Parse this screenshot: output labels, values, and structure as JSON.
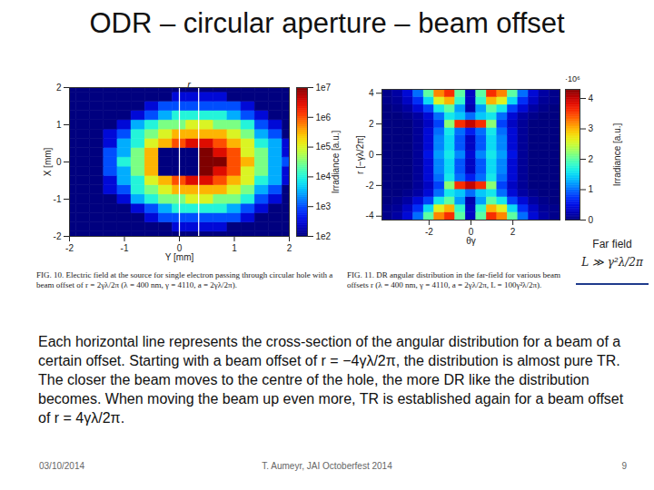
{
  "slide": {
    "title": "ODR – circular aperture – beam offset",
    "text": "Each horizontal line represents the cross-section of the angular distribution for a beam of a certain offset. Starting with a beam offset of r = −4γλ/2π, the distribution is almost pure TR. The closer the beam moves to the centre of the hole, the more DR like the distribution becomes. When moving the beam up even more, TR is established again for a beam offset of r = 4γλ/2π.",
    "footer": {
      "date": "03/10/2014",
      "author": "T. Aumeyr, JAI Octoberfest 2014",
      "page": 9
    }
  },
  "far_field": {
    "label": "Far field",
    "condition": "L ≫ γ²λ/2π"
  },
  "chart_data": [
    {
      "type": "heatmap",
      "caption": "FIG. 10. Electric field at the source for single electron passing through circular hole with a beam offset of r = 2γλ/2π (λ = 400 nm, γ = 4110, a = 2γλ/2π).",
      "xlabel": "Y [mm]",
      "ylabel": "X [mm]",
      "xlim": [
        -2,
        2
      ],
      "ylim": [
        -2,
        2
      ],
      "xticks": [
        -2,
        -1,
        0,
        1,
        2
      ],
      "yticks": [
        -2,
        -1,
        0,
        1,
        2
      ],
      "annotation": {
        "label": "r",
        "lines": [
          0,
          0.35
        ]
      },
      "x": [
        -2,
        -1.75,
        -1.5,
        -1.25,
        -1,
        -0.75,
        -0.5,
        -0.25,
        0,
        0.25,
        0.5,
        0.75,
        1,
        1.25,
        1.5,
        1.75,
        2
      ],
      "y": [
        -2,
        -1.75,
        -1.5,
        -1.25,
        -1,
        -0.75,
        -0.5,
        -0.25,
        0,
        0.25,
        0.5,
        0.75,
        1,
        1.25,
        1.5,
        1.75,
        2
      ],
      "z": [
        [
          100.0,
          100.0,
          100.0,
          100.0,
          100.0,
          100.0,
          100.0,
          100.0,
          100.0,
          100.0,
          100.0,
          100.0,
          100.0,
          100.0,
          100.0,
          100.0,
          100.0
        ],
        [
          100.0,
          100.0,
          100.0,
          100.0,
          100.0,
          100.0,
          100.0,
          100.0,
          300.0,
          300.0,
          300.0,
          300.0,
          100.0,
          100.0,
          100.0,
          100.0,
          100.0
        ],
        [
          100.0,
          100.0,
          100.0,
          100.0,
          100.0,
          100.0,
          300.0,
          1000.0,
          1000.0,
          1000.0,
          1000.0,
          1000.0,
          1000.0,
          300.0,
          100.0,
          100.0,
          100.0
        ],
        [
          100.0,
          100.0,
          100.0,
          100.0,
          100.0,
          300.0,
          1000.0,
          3000.0,
          10000.0,
          10000.0,
          10000.0,
          10000.0,
          3000.0,
          1000.0,
          300.0,
          100.0,
          100.0
        ],
        [
          100.0,
          100.0,
          100.0,
          100.0,
          300.0,
          3000.0,
          10000.0,
          30000.0,
          30000.0,
          100000.0,
          100000.0,
          30000.0,
          30000.0,
          10000.0,
          1000.0,
          300.0,
          100.0
        ],
        [
          100.0,
          100.0,
          100.0,
          300.0,
          1000.0,
          10000.0,
          30000.0,
          100000.0,
          300000.0,
          300000.0,
          300000.0,
          300000.0,
          100000.0,
          30000.0,
          3000.0,
          1000.0,
          100.0
        ],
        [
          100.0,
          100.0,
          100.0,
          300.0,
          3000.0,
          10000.0,
          100000.0,
          300000.0,
          1000000.0,
          3000000.0,
          3000000.0,
          1000000.0,
          300000.0,
          100000.0,
          10000.0,
          3000.0,
          300.0
        ],
        [
          100.0,
          100.0,
          100.0,
          1000.0,
          3000.0,
          30000.0,
          300000.0,
          100.0,
          100.0,
          100.0,
          10000000.0,
          3000000.0,
          1000000.0,
          100000.0,
          30000.0,
          3000.0,
          300.0
        ],
        [
          100.0,
          100.0,
          100.0,
          1000.0,
          10000.0,
          30000.0,
          300000.0,
          100.0,
          100.0,
          100.0,
          10000000.0,
          10000000.0,
          1000000.0,
          300000.0,
          30000.0,
          3000.0,
          1000.0
        ],
        [
          100.0,
          100.0,
          100.0,
          1000.0,
          3000.0,
          30000.0,
          300000.0,
          100.0,
          100.0,
          100.0,
          10000000.0,
          3000000.0,
          1000000.0,
          100000.0,
          30000.0,
          3000.0,
          300.0
        ],
        [
          100.0,
          100.0,
          100.0,
          300.0,
          3000.0,
          10000.0,
          100000.0,
          300000.0,
          1000000.0,
          3000000.0,
          3000000.0,
          1000000.0,
          300000.0,
          100000.0,
          10000.0,
          3000.0,
          300.0
        ],
        [
          100.0,
          100.0,
          100.0,
          300.0,
          1000.0,
          10000.0,
          30000.0,
          100000.0,
          300000.0,
          300000.0,
          300000.0,
          300000.0,
          100000.0,
          30000.0,
          3000.0,
          1000.0,
          100.0
        ],
        [
          100.0,
          100.0,
          100.0,
          100.0,
          300.0,
          3000.0,
          10000.0,
          30000.0,
          30000.0,
          100000.0,
          100000.0,
          30000.0,
          30000.0,
          10000.0,
          1000.0,
          300.0,
          100.0
        ],
        [
          100.0,
          100.0,
          100.0,
          100.0,
          100.0,
          300.0,
          1000.0,
          3000.0,
          10000.0,
          10000.0,
          10000.0,
          10000.0,
          3000.0,
          1000.0,
          300.0,
          100.0,
          100.0
        ],
        [
          100.0,
          100.0,
          100.0,
          100.0,
          100.0,
          100.0,
          300.0,
          1000.0,
          1000.0,
          1000.0,
          1000.0,
          1000.0,
          1000.0,
          300.0,
          100.0,
          100.0,
          100.0
        ],
        [
          100.0,
          100.0,
          100.0,
          100.0,
          100.0,
          100.0,
          100.0,
          100.0,
          300.0,
          300.0,
          300.0,
          300.0,
          100.0,
          100.0,
          100.0,
          100.0,
          100.0
        ],
        [
          100.0,
          100.0,
          100.0,
          100.0,
          100.0,
          100.0,
          100.0,
          100.0,
          100.0,
          100.0,
          100.0,
          100.0,
          100.0,
          100.0,
          100.0,
          100.0,
          100.0
        ]
      ],
      "colorbar": {
        "label": "Irradiance [a.u.]",
        "log": true,
        "range": [
          100,
          10000000
        ],
        "ticks": [
          {
            "value": 100,
            "label": "1e2"
          },
          {
            "value": 1000,
            "label": "1e3"
          },
          {
            "value": 10000,
            "label": "1e4"
          },
          {
            "value": 100000,
            "label": "1e5"
          },
          {
            "value": 1000000,
            "label": "1e6"
          },
          {
            "value": 10000000,
            "label": "1e7"
          }
        ]
      }
    },
    {
      "type": "heatmap",
      "caption": "FIG. 11. DR angular distribution in the far-field for various beam offsets r (λ = 400 nm, γ = 4110, a = 2γλ/2π, L = 100γ²λ/2π).",
      "xlabel": "θγ",
      "ylabel": "r [−γλ/2π]",
      "xlim": [
        -4.25,
        4.25
      ],
      "ylim": [
        -4.25,
        4.25
      ],
      "xticks": [
        -2,
        0,
        2
      ],
      "yticks": [
        -4,
        -2,
        0,
        2,
        4
      ],
      "x": [
        -4,
        -3.5,
        -3,
        -2.5,
        -2,
        -1.5,
        -1,
        -0.5,
        0,
        0.5,
        1,
        1.5,
        2,
        2.5,
        3,
        3.5,
        4
      ],
      "y": [
        -4,
        -3.5,
        -3,
        -2.5,
        -2,
        -1.5,
        -1,
        -0.5,
        0,
        0.5,
        1,
        1.5,
        2,
        2.5,
        3,
        3.5,
        4
      ],
      "z": [
        [
          0.05,
          0.15,
          0.4,
          1.0,
          2.0,
          3.2,
          3.6,
          2.0,
          0.3,
          2.0,
          3.6,
          3.2,
          2.0,
          1.0,
          0.4,
          0.15,
          0.05
        ],
        [
          0.05,
          0.1,
          0.3,
          0.7,
          1.5,
          2.6,
          3.0,
          1.8,
          0.3,
          1.8,
          3.0,
          2.6,
          1.5,
          0.7,
          0.3,
          0.1,
          0.05
        ],
        [
          0,
          0.05,
          0.15,
          0.4,
          0.8,
          1.6,
          2.0,
          1.2,
          0.2,
          1.2,
          2.0,
          1.6,
          0.8,
          0.4,
          0.15,
          0.05,
          0
        ],
        [
          0,
          0,
          0.05,
          0.15,
          0.4,
          1.0,
          1.6,
          1.4,
          1.0,
          1.4,
          1.6,
          1.0,
          0.4,
          0.15,
          0.05,
          0,
          0
        ],
        [
          0,
          0,
          0,
          0.1,
          0.3,
          0.8,
          2.2,
          3.6,
          4.0,
          3.6,
          2.2,
          0.8,
          0.3,
          0.1,
          0,
          0,
          0
        ],
        [
          0,
          0,
          0,
          0.1,
          0.4,
          1.0,
          1.6,
          1.0,
          0.6,
          1.0,
          1.6,
          1.0,
          0.4,
          0.1,
          0,
          0,
          0
        ],
        [
          0,
          0,
          0,
          0.1,
          0.4,
          1.1,
          1.5,
          0.9,
          0.3,
          0.9,
          1.5,
          1.1,
          0.4,
          0.1,
          0,
          0,
          0
        ],
        [
          0,
          0,
          0,
          0.1,
          0.4,
          1.1,
          1.5,
          0.9,
          0.3,
          0.9,
          1.5,
          1.1,
          0.4,
          0.1,
          0,
          0,
          0
        ],
        [
          0,
          0,
          0,
          0.1,
          0.5,
          1.2,
          1.6,
          1.1,
          0.4,
          1.1,
          1.6,
          1.2,
          0.5,
          0.1,
          0,
          0,
          0
        ],
        [
          0,
          0,
          0,
          0.1,
          0.4,
          1.1,
          1.5,
          0.9,
          0.3,
          0.9,
          1.5,
          1.1,
          0.4,
          0.1,
          0,
          0,
          0
        ],
        [
          0,
          0,
          0,
          0.1,
          0.4,
          1.1,
          1.5,
          0.9,
          0.3,
          0.9,
          1.5,
          1.1,
          0.4,
          0.1,
          0,
          0,
          0
        ],
        [
          0,
          0,
          0,
          0.1,
          0.4,
          1.0,
          1.6,
          1.0,
          0.6,
          1.0,
          1.6,
          1.0,
          0.4,
          0.1,
          0,
          0,
          0
        ],
        [
          0,
          0,
          0,
          0.1,
          0.3,
          0.8,
          2.2,
          3.6,
          4.0,
          3.6,
          2.2,
          0.8,
          0.3,
          0.1,
          0,
          0,
          0
        ],
        [
          0,
          0,
          0.05,
          0.15,
          0.4,
          1.0,
          1.6,
          1.4,
          1.0,
          1.4,
          1.6,
          1.0,
          0.4,
          0.15,
          0.05,
          0,
          0
        ],
        [
          0,
          0.05,
          0.15,
          0.4,
          0.8,
          1.6,
          2.0,
          1.2,
          0.2,
          1.2,
          2.0,
          1.6,
          0.8,
          0.4,
          0.15,
          0.05,
          0
        ],
        [
          0.05,
          0.1,
          0.3,
          0.7,
          1.5,
          2.6,
          3.0,
          1.8,
          0.3,
          1.8,
          3.0,
          2.6,
          1.5,
          0.7,
          0.3,
          0.1,
          0.05
        ],
        [
          0.05,
          0.15,
          0.4,
          1.0,
          2.0,
          3.2,
          3.6,
          2.0,
          0.3,
          2.0,
          3.6,
          3.2,
          2.0,
          1.0,
          0.4,
          0.15,
          0.05
        ]
      ],
      "colorbar": {
        "label": "Irradiance [a.u.]",
        "multiplier": "·10⁶",
        "range": [
          0,
          4.3
        ],
        "ticks": [
          0,
          1,
          2,
          3,
          4
        ]
      }
    }
  ]
}
